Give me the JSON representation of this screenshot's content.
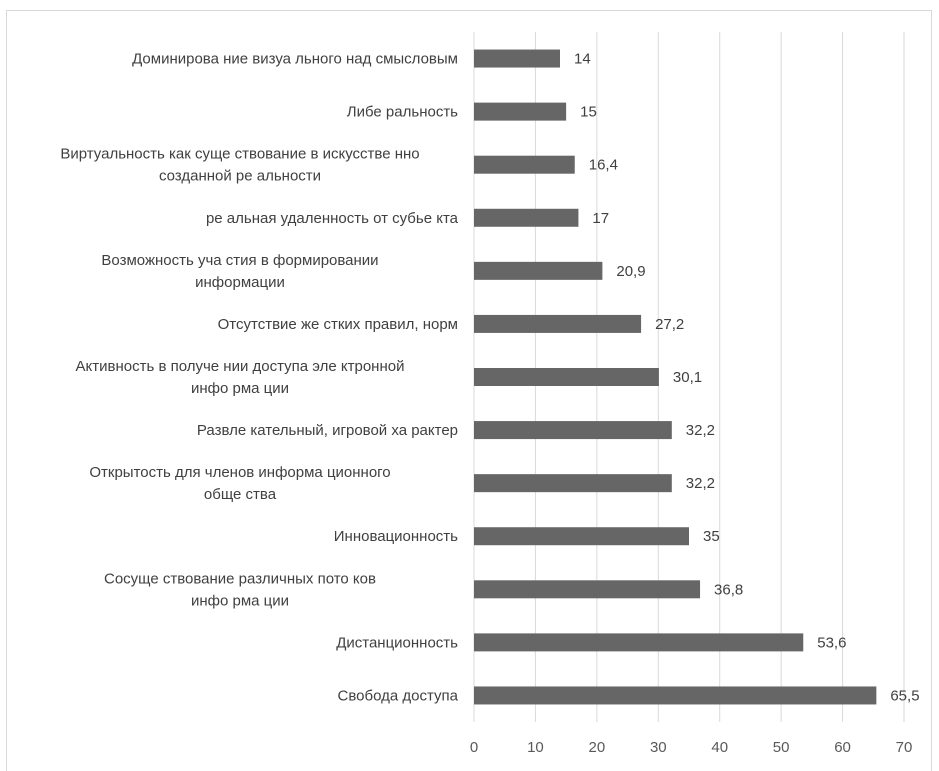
{
  "chart_data": {
    "type": "bar",
    "orientation": "horizontal",
    "categories": [
      [
        "Свобода доступа"
      ],
      [
        "Дистанционность"
      ],
      [
        "Сосуще ствование различных пото ков",
        "инфо рма ции"
      ],
      [
        "Инновационность"
      ],
      [
        "Открытость для членов информа ционного",
        "обще ства"
      ],
      [
        "Развле кательный, игровой ха рактер"
      ],
      [
        "Активность в получе нии доступа эле ктронной",
        "инфо рма ции"
      ],
      [
        "Отсутствие же стких правил, норм"
      ],
      [
        "Возможность уча стия в формировании",
        "информации"
      ],
      [
        "ре альная удаленность от субье кта"
      ],
      [
        "Виртуальность как суще ствование в искусстве нно",
        "созданной ре альности"
      ],
      [
        "Либе ральность"
      ],
      [
        "Доминирова ние визуа льного над смысловым"
      ]
    ],
    "values": [
      65.5,
      53.6,
      36.8,
      35,
      32.2,
      32.2,
      30.1,
      27.2,
      20.9,
      17,
      16.4,
      15,
      14
    ],
    "value_labels": [
      "65,5",
      "53,6",
      "36,8",
      "35",
      "32,2",
      "32,2",
      "30,1",
      "27,2",
      "20,9",
      "17",
      "16,4",
      "15",
      "14"
    ],
    "xlim": [
      0,
      70
    ],
    "x_ticks": [
      "0",
      "10",
      "20",
      "30",
      "40",
      "50",
      "60",
      "70"
    ],
    "grid": "vertical",
    "bar_color": "#666666",
    "grid_color": "#d9d9d9"
  }
}
